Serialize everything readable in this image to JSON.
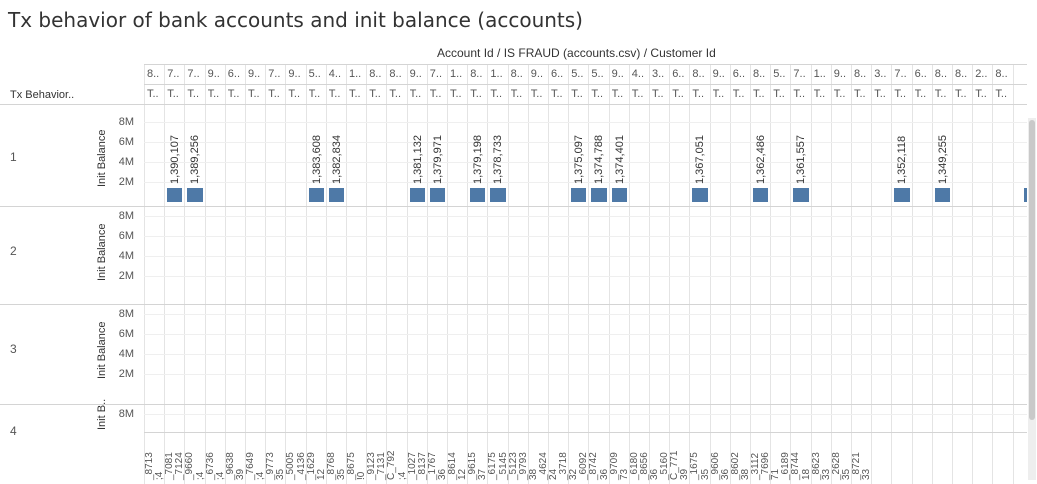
{
  "title": "Tx behavior of bank accounts and init balance (accounts)",
  "column_header_title": "Account Id / IS FRAUD (accounts.csv) / Customer Id",
  "row_header_title": "Tx Behavior..",
  "header_row1": [
    "8..",
    "7..",
    "7..",
    "9..",
    "6..",
    "9..",
    "7..",
    "9..",
    "5..",
    "4..",
    "1..",
    "8..",
    "8..",
    "9..",
    "7..",
    "1..",
    "8..",
    "1..",
    "8..",
    "9..",
    "6..",
    "5..",
    "5..",
    "9..",
    "4..",
    "3..",
    "6..",
    "8..",
    "9..",
    "6..",
    "8..",
    "5..",
    "7..",
    "1..",
    "9..",
    "8..",
    "3..",
    "7..",
    "6..",
    "8..",
    "8..",
    "2..",
    "8.."
  ],
  "header_row2_item": "T..",
  "rows": [
    {
      "label": "1",
      "axis_title": "Init Balance"
    },
    {
      "label": "2",
      "axis_title": "Init Balance"
    },
    {
      "label": "3",
      "axis_title": "Init Balance"
    },
    {
      "label": "4",
      "axis_title": "Init B.."
    }
  ],
  "ticks": [
    "8M",
    "6M",
    "4M",
    "2M"
  ],
  "bottom_labels": [
    "_8713",
    ";4",
    "_7081",
    "_7124",
    "_9660",
    ";4",
    "_6736",
    ";4",
    "_9638",
    "39",
    "_7649",
    ";4",
    "_9773",
    "35",
    "_5005",
    "_4136",
    "_1629",
    "12",
    "_8768",
    "35",
    "_8675",
    "!0",
    "_9123",
    "_7131",
    "C_792",
    ";4",
    "_1027",
    "_8137",
    "_1767",
    "36",
    "_8614",
    "12",
    "_9615",
    "37",
    "_6175",
    "_5145",
    "_5123",
    "_9793",
    "38",
    "_4624",
    "24",
    "_3718",
    "32",
    "_6092",
    "_8742",
    "36",
    "_9709",
    "73",
    "_6180",
    "_8656",
    "36",
    "_5160",
    "C_771",
    "39",
    "_1675",
    "35",
    "_9606",
    "36",
    "_8602",
    "38",
    "_3112",
    "_7696",
    "71",
    "_6189",
    "_8744",
    "18",
    "_8623",
    "33",
    "_2628",
    "35",
    "_8721",
    "33"
  ],
  "chart_data": {
    "type": "bar",
    "ylabel": "Init Balance",
    "yticks": [
      "8M",
      "6M",
      "4M",
      "2M"
    ],
    "values": [
      {
        "col": 1,
        "label": "1,390,107",
        "value": 1390107
      },
      {
        "col": 2,
        "label": "1,389,256",
        "value": 1389256
      },
      {
        "col": 8,
        "label": "1,383,608",
        "value": 1383608
      },
      {
        "col": 9,
        "label": "1,382,834",
        "value": 1382834
      },
      {
        "col": 13,
        "label": "1,381,132",
        "value": 1381132
      },
      {
        "col": 14,
        "label": "1,379,971",
        "value": 1379971
      },
      {
        "col": 16,
        "label": "1,379,198",
        "value": 1379198
      },
      {
        "col": 17,
        "label": "1,378,733",
        "value": 1378733
      },
      {
        "col": 21,
        "label": "1,375,097",
        "value": 1375097
      },
      {
        "col": 22,
        "label": "1,374,788",
        "value": 1374788
      },
      {
        "col": 23,
        "label": "1,374,401",
        "value": 1374401
      },
      {
        "col": 27,
        "label": "1,367,051",
        "value": 1367051
      },
      {
        "col": 30,
        "label": "1,362,486",
        "value": 1362486
      },
      {
        "col": 32,
        "label": "1,361,557",
        "value": 1361557
      },
      {
        "col": 37,
        "label": "1,352,118",
        "value": 1352118
      },
      {
        "col": 39,
        "label": "1,349,255",
        "value": 1349255
      }
    ]
  }
}
